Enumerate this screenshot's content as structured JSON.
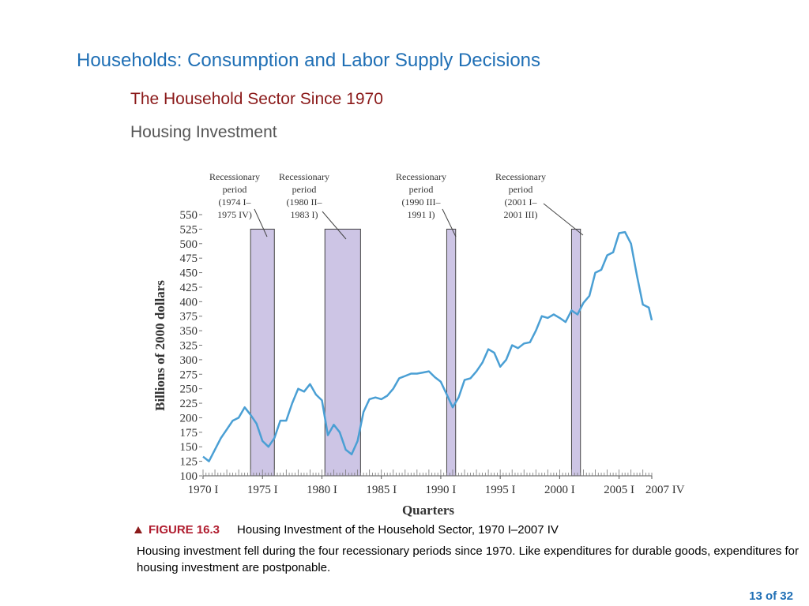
{
  "slide": {
    "title": "Households: Consumption and Labor Supply Decisions",
    "subtitle": "The Household Sector Since 1970",
    "section": "Housing Investment",
    "figure_number": "FIGURE 16.3",
    "figure_title": "Housing Investment of the Household Sector, 1970 I–2007 IV",
    "caption": "Housing investment fell during the four recessionary periods since 1970. Like expenditures for durable goods, expenditures for housing investment are postponable.",
    "page": "13 of 32"
  },
  "chart_data": {
    "type": "line",
    "xlabel": "Quarters",
    "ylabel": "Billions of 2000 dollars",
    "color": "#4a9fd4",
    "x": [
      1970,
      1970.5,
      1971,
      1971.5,
      1972,
      1972.5,
      1973,
      1973.5,
      1974,
      1974.5,
      1975,
      1975.5,
      1976,
      1976.5,
      1977,
      1977.5,
      1978,
      1978.5,
      1979,
      1979.5,
      1980,
      1980.5,
      1981,
      1981.5,
      1982,
      1982.5,
      1983,
      1983.5,
      1984,
      1984.5,
      1985,
      1985.5,
      1986,
      1986.5,
      1987,
      1987.5,
      1988,
      1988.5,
      1989,
      1989.5,
      1990,
      1990.5,
      1991,
      1991.5,
      1992,
      1992.5,
      1993,
      1993.5,
      1994,
      1994.5,
      1995,
      1995.5,
      1996,
      1996.5,
      1997,
      1997.5,
      1998,
      1998.5,
      1999,
      1999.5,
      2000,
      2000.5,
      2001,
      2001.5,
      2002,
      2002.5,
      2003,
      2003.5,
      2004,
      2004.5,
      2005,
      2005.5,
      2006,
      2006.5,
      2007,
      2007.5,
      2007.75
    ],
    "values": [
      133,
      125,
      145,
      165,
      180,
      195,
      200,
      218,
      205,
      190,
      160,
      150,
      165,
      195,
      195,
      225,
      250,
      245,
      258,
      240,
      230,
      170,
      188,
      175,
      145,
      137,
      160,
      210,
      232,
      235,
      232,
      238,
      250,
      268,
      272,
      276,
      276,
      278,
      280,
      270,
      262,
      240,
      218,
      235,
      265,
      268,
      280,
      295,
      318,
      312,
      288,
      300,
      325,
      320,
      328,
      330,
      350,
      375,
      372,
      378,
      372,
      365,
      385,
      378,
      398,
      410,
      450,
      455,
      480,
      485,
      518,
      520,
      500,
      445,
      395,
      390,
      368
    ],
    "xlim": [
      1970,
      2007.75
    ],
    "xticks": [
      {
        "value": 1970,
        "label": "1970 I"
      },
      {
        "value": 1975,
        "label": "1975 I"
      },
      {
        "value": 1980,
        "label": "1980 I"
      },
      {
        "value": 1985,
        "label": "1985 I"
      },
      {
        "value": 1990,
        "label": "1990 I"
      },
      {
        "value": 1995,
        "label": "1995 I"
      },
      {
        "value": 2000,
        "label": "2000 I"
      },
      {
        "value": 2005,
        "label": "2005 I"
      },
      {
        "value": 2007.75,
        "label": "2007 IV"
      }
    ],
    "ylim": [
      100,
      550
    ],
    "yticks": [
      100,
      125,
      150,
      175,
      200,
      225,
      250,
      275,
      300,
      325,
      350,
      375,
      400,
      425,
      450,
      475,
      500,
      525,
      550
    ],
    "recessions": [
      {
        "label": [
          "Recessionary",
          "period",
          "(1974 I–",
          "1975 IV)"
        ],
        "start": 1974,
        "end": 1976,
        "y": 525
      },
      {
        "label": [
          "Recessionary",
          "period",
          "(1980 II–",
          "1983 I)"
        ],
        "start": 1980.25,
        "end": 1983.25,
        "y": 525
      },
      {
        "label": [
          "Recessionary",
          "period",
          "(1990 III–",
          "1991 I)"
        ],
        "start": 1990.5,
        "end": 1991.25,
        "y": 525
      },
      {
        "label": [
          "Recessionary",
          "period",
          "(2001 I–",
          "2001 III)"
        ],
        "start": 2001,
        "end": 2001.75,
        "y": 525
      }
    ]
  }
}
